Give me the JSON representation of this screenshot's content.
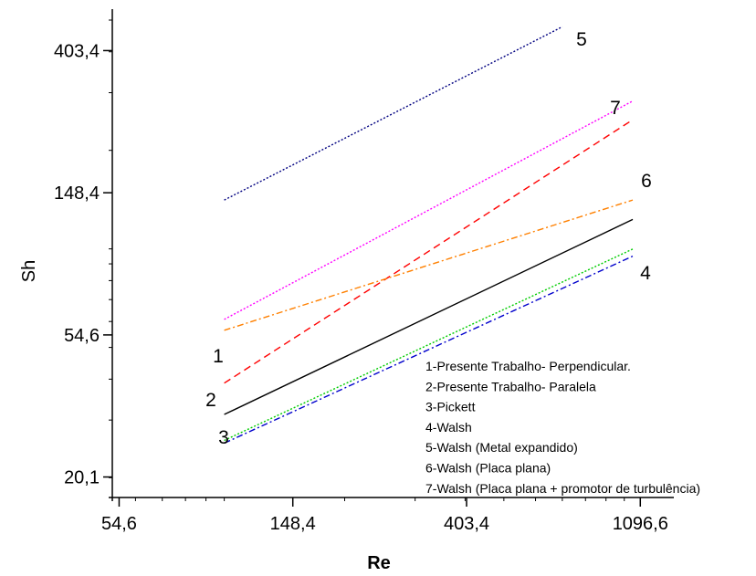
{
  "chart_data": {
    "type": "line",
    "title": "",
    "xlabel": "Re",
    "ylabel": "Sh",
    "xscale": "log",
    "yscale": "log",
    "xlim": [
      52.5,
      1330
    ],
    "ylim": [
      17.4,
      540
    ],
    "xticks": [
      {
        "value": 54.6,
        "label": "54,6"
      },
      {
        "value": 148.4,
        "label": "148,4"
      },
      {
        "value": 403.4,
        "label": "403,4"
      },
      {
        "value": 1096.6,
        "label": "1096,6"
      }
    ],
    "yticks": [
      {
        "value": 20.1,
        "label": "20,1"
      },
      {
        "value": 54.6,
        "label": "54,6"
      },
      {
        "value": 148.4,
        "label": "148,4"
      },
      {
        "value": 403.4,
        "label": "403,4"
      }
    ],
    "grid": false,
    "legend_position": "bottom-right",
    "series": [
      {
        "id": "1",
        "color": "#ff0000",
        "dash": "dashed",
        "x": [
          100,
          1050
        ],
        "y": [
          38.9,
          248
        ]
      },
      {
        "id": "2",
        "color": "#000000",
        "dash": "solid",
        "x": [
          100,
          1050
        ],
        "y": [
          31.2,
          123
        ]
      },
      {
        "id": "3",
        "color": "#00cc00",
        "dash": "dotted",
        "x": [
          100,
          1050
        ],
        "y": [
          26.0,
          99.9
        ]
      },
      {
        "id": "4",
        "color": "#0000cc",
        "dash": "dashdot",
        "x": [
          100,
          1050
        ],
        "y": [
          25.5,
          95.0
        ]
      },
      {
        "id": "5",
        "color": "#000080",
        "dash": "dotted",
        "x": [
          100,
          700
        ],
        "y": [
          141,
          477
        ]
      },
      {
        "id": "6",
        "color": "#ff8000",
        "dash": "dashdot",
        "x": [
          100,
          1050
        ],
        "y": [
          56.4,
          141
        ]
      },
      {
        "id": "7",
        "color": "#ff00ff",
        "dash": "dotted",
        "x": [
          100,
          1050
        ],
        "y": [
          60.9,
          283
        ]
      }
    ],
    "series_labels": [
      "1",
      "2",
      "3",
      "4",
      "5",
      "6",
      "7"
    ],
    "legend_entries": [
      "1-Presente Trabalho- Perpendicular.",
      "2-Presente Trabalho- Paralela",
      "3-Pickett",
      "4-Walsh",
      "5-Walsh (Metal expandido)",
      "6-Walsh (Placa plana)",
      "7-Walsh (Placa plana + promotor de turbulência)"
    ]
  }
}
